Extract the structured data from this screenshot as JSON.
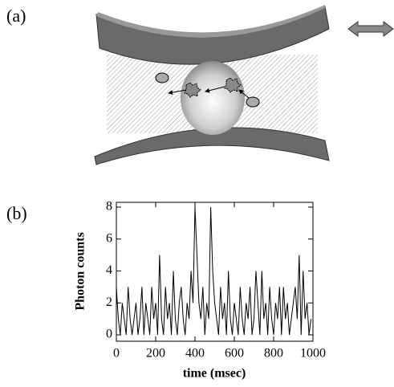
{
  "panel_labels": [
    "(a)",
    "(b)"
  ],
  "chart_data": {
    "type": "line",
    "x_label": "time (msec)",
    "y_label": "Photon counts",
    "x": [
      0,
      10,
      20,
      30,
      40,
      50,
      60,
      70,
      80,
      90,
      100,
      110,
      120,
      130,
      140,
      150,
      160,
      170,
      180,
      190,
      200,
      210,
      220,
      230,
      240,
      250,
      260,
      270,
      280,
      290,
      300,
      310,
      320,
      330,
      340,
      350,
      360,
      370,
      380,
      390,
      400,
      410,
      420,
      430,
      440,
      450,
      460,
      470,
      480,
      490,
      500,
      510,
      520,
      530,
      540,
      550,
      560,
      570,
      580,
      590,
      600,
      610,
      620,
      630,
      640,
      650,
      660,
      670,
      680,
      690,
      700,
      710,
      720,
      730,
      740,
      750,
      760,
      770,
      780,
      790,
      800,
      810,
      820,
      830,
      840,
      850,
      860,
      870,
      880,
      890,
      900,
      910,
      920,
      930,
      940,
      950,
      960,
      970,
      980,
      990
    ],
    "values": [
      3,
      1,
      0,
      2,
      1,
      0,
      3,
      1,
      0,
      1,
      2,
      0,
      1,
      3,
      0,
      2,
      1,
      0,
      3,
      1,
      2,
      0,
      5,
      1,
      0,
      3,
      1,
      2,
      0,
      4,
      1,
      0,
      2,
      3,
      1,
      0,
      2,
      1,
      4,
      2,
      8,
      5,
      2,
      1,
      3,
      0,
      2,
      1,
      8,
      4,
      2,
      1,
      0,
      3,
      1,
      2,
      0,
      4,
      1,
      0,
      2,
      1,
      0,
      3,
      1,
      0,
      2,
      1,
      3,
      0,
      1,
      4,
      2,
      0,
      4,
      1,
      2,
      0,
      3,
      1,
      0,
      2,
      1,
      3,
      0,
      3,
      1,
      2,
      0,
      1,
      2,
      3,
      1,
      5,
      0,
      4,
      1,
      2,
      0,
      1
    ],
    "color": "#000000",
    "xlim": [
      0,
      1000
    ],
    "xticks": [
      0,
      200,
      400,
      600,
      800,
      1000
    ],
    "ylim": [
      -0.4,
      8.3
    ],
    "yticks": [
      0,
      2,
      4,
      6,
      8
    ]
  }
}
